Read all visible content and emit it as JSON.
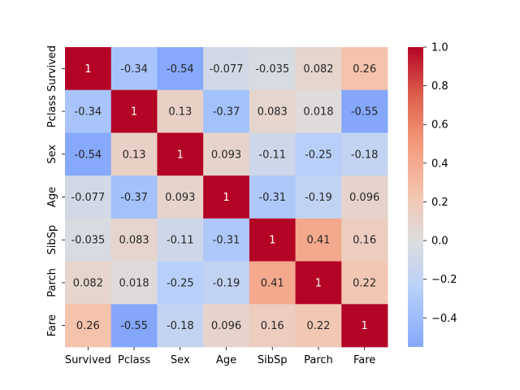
{
  "chart_data": {
    "type": "heatmap",
    "title": "",
    "xlabel": "",
    "ylabel": "",
    "x_categories": [
      "Survived",
      "Pclass",
      "Sex",
      "Age",
      "SibSp",
      "Parch",
      "Fare"
    ],
    "y_categories": [
      "Survived",
      "Pclass",
      "Sex",
      "Age",
      "SibSp",
      "Parch",
      "Fare"
    ],
    "values": [
      [
        1,
        -0.34,
        -0.54,
        -0.077,
        -0.035,
        0.082,
        0.26
      ],
      [
        -0.34,
        1,
        0.13,
        -0.37,
        0.083,
        0.018,
        -0.55
      ],
      [
        -0.54,
        0.13,
        1,
        0.093,
        -0.11,
        -0.25,
        -0.18
      ],
      [
        -0.077,
        -0.37,
        0.093,
        1,
        -0.31,
        -0.19,
        0.096
      ],
      [
        -0.035,
        0.083,
        -0.11,
        -0.31,
        1,
        0.41,
        0.16
      ],
      [
        0.082,
        0.018,
        -0.25,
        -0.19,
        0.41,
        1,
        0.22
      ],
      [
        0.26,
        -0.55,
        -0.18,
        0.096,
        0.16,
        0.22,
        1
      ]
    ],
    "annotations": [
      [
        "1",
        "-0.34",
        "-0.54",
        "-0.077",
        "-0.035",
        "0.082",
        "0.26"
      ],
      [
        "-0.34",
        "1",
        "0.13",
        "-0.37",
        "0.083",
        "0.018",
        "-0.55"
      ],
      [
        "-0.54",
        "0.13",
        "1",
        "0.093",
        "-0.11",
        "-0.25",
        "-0.18"
      ],
      [
        "-0.077",
        "-0.37",
        "0.093",
        "1",
        "-0.31",
        "-0.19",
        "0.096"
      ],
      [
        "-0.035",
        "0.083",
        "-0.11",
        "-0.31",
        "1",
        "0.41",
        "0.16"
      ],
      [
        "0.082",
        "0.018",
        "-0.25",
        "-0.19",
        "0.41",
        "1",
        "0.22"
      ],
      [
        "0.26",
        "-0.55",
        "-0.18",
        "0.096",
        "0.16",
        "0.22",
        "1"
      ]
    ],
    "colormap": "coolwarm",
    "colorbar": {
      "range": [
        -0.55,
        1.0
      ],
      "ticks": [
        -0.4,
        -0.2,
        0.0,
        0.2,
        0.4,
        0.6,
        0.8,
        1.0
      ],
      "tick_labels": [
        "−0.4",
        "−0.2",
        "0.0",
        "0.2",
        "0.4",
        "0.6",
        "0.8",
        "1.0"
      ]
    },
    "grid": false,
    "legend": "colorbar-right"
  }
}
